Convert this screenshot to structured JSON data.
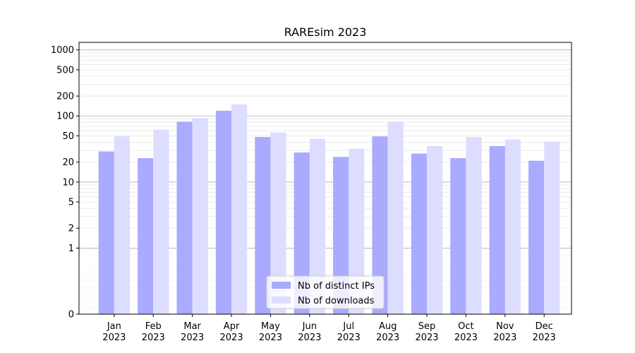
{
  "chart_data": {
    "type": "bar",
    "title": "RAREsim 2023",
    "xlabel": "",
    "ylabel": "",
    "yscale": "symlog",
    "ylim": [
      0,
      1300
    ],
    "yticks": [
      0,
      1,
      2,
      5,
      10,
      20,
      50,
      100,
      200,
      500,
      1000
    ],
    "ytick_labels": [
      "0",
      "1",
      "2",
      "5",
      "10",
      "20",
      "50",
      "100",
      "200",
      "500",
      "1000"
    ],
    "categories": [
      {
        "month": "Jan",
        "year": "2023"
      },
      {
        "month": "Feb",
        "year": "2023"
      },
      {
        "month": "Mar",
        "year": "2023"
      },
      {
        "month": "Apr",
        "year": "2023"
      },
      {
        "month": "May",
        "year": "2023"
      },
      {
        "month": "Jun",
        "year": "2023"
      },
      {
        "month": "Jul",
        "year": "2023"
      },
      {
        "month": "Aug",
        "year": "2023"
      },
      {
        "month": "Sep",
        "year": "2023"
      },
      {
        "month": "Oct",
        "year": "2023"
      },
      {
        "month": "Nov",
        "year": "2023"
      },
      {
        "month": "Dec",
        "year": "2023"
      }
    ],
    "series": [
      {
        "name": "Nb of distinct IPs",
        "color": "#aaaaff",
        "values": [
          29,
          23,
          82,
          120,
          48,
          28,
          24,
          49,
          27,
          23,
          35,
          21
        ]
      },
      {
        "name": "Nb of downloads",
        "color": "#ddddff",
        "values": [
          49,
          62,
          93,
          150,
          56,
          45,
          32,
          82,
          35,
          48,
          44,
          41
        ]
      }
    ],
    "grid": true,
    "legend_position": "lower center"
  }
}
